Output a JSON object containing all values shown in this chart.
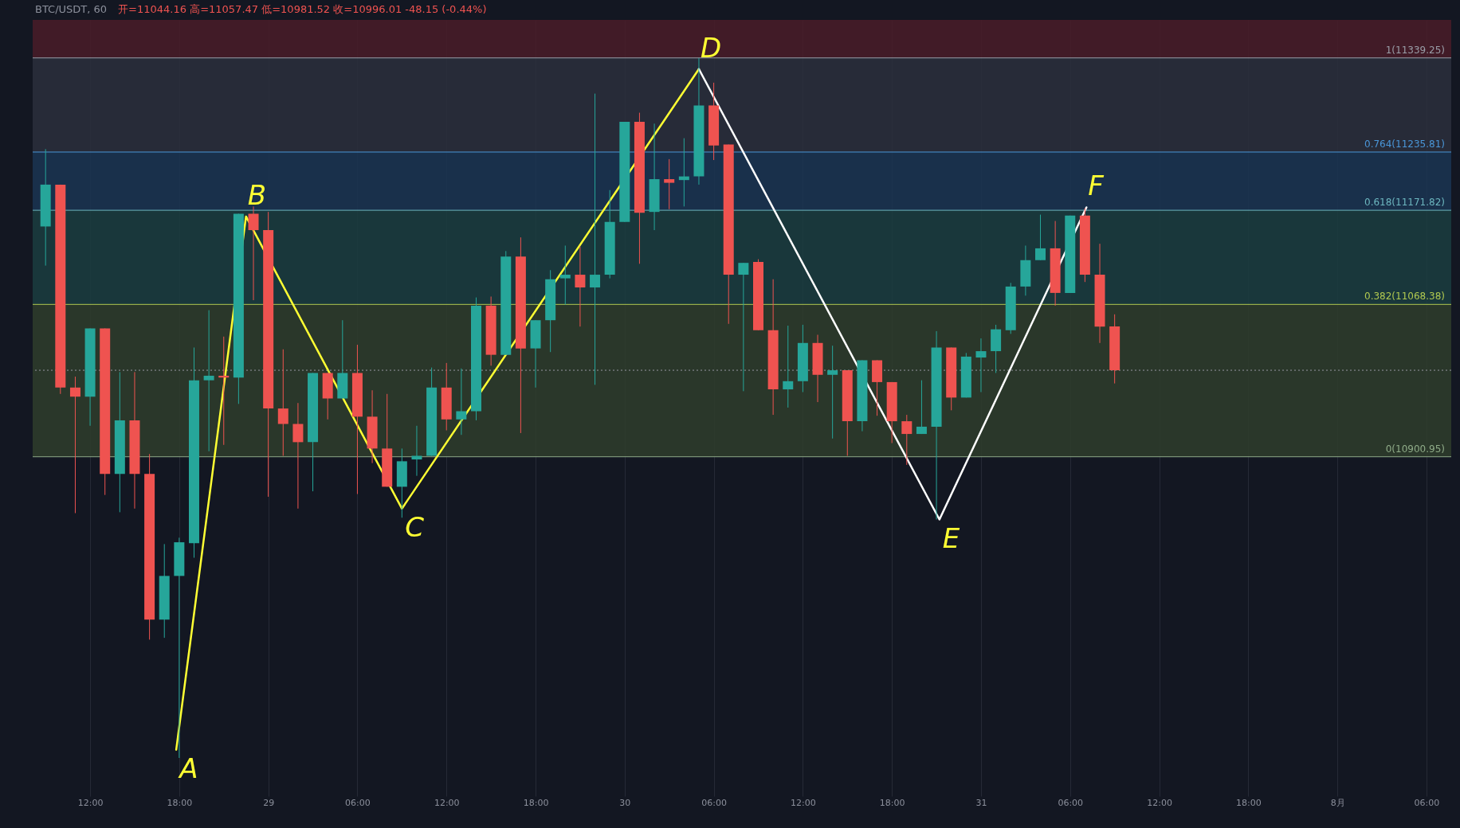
{
  "chart_data": {
    "type": "candlestick",
    "title": "BTC/USDT, 60",
    "subtitle": "开=11044.16 高=11057.47 低=10981.52 收=10996.01 -48.15 (-0.44%)",
    "xlim": [
      "--07-28T08:24",
      "--08-01T07:24"
    ],
    "xticks": [
      {
        "value": "--07-28T12:00",
        "label": "12:00"
      },
      {
        "value": "--07-28T18:00",
        "label": "18:00"
      },
      {
        "value": "--07-29T00:00",
        "label": "29"
      },
      {
        "value": "--07-29T06:00",
        "label": "06:00"
      },
      {
        "value": "--07-29T12:00",
        "label": "12:00"
      },
      {
        "value": "--07-29T18:00",
        "label": "18:00"
      },
      {
        "value": "--07-30T00:00",
        "label": "30"
      },
      {
        "value": "--07-30T06:00",
        "label": "06:00"
      },
      {
        "value": "--07-30T12:00",
        "label": "12:00"
      },
      {
        "value": "--07-30T18:00",
        "label": "18:00"
      },
      {
        "value": "--07-31T00:00",
        "label": "31"
      },
      {
        "value": "--07-31T06:00",
        "label": "06:00"
      },
      {
        "value": "--07-31T12:00",
        "label": "12:00"
      },
      {
        "value": "--07-31T18:00",
        "label": "18:00"
      },
      {
        "value": "--08-01T00:00",
        "label": "8月"
      },
      {
        "value": "--08-01T06:00",
        "label": "06:00"
      }
    ],
    "ylim": [
      10528,
      11381
    ],
    "tick_labels": "x",
    "grid": "x",
    "series": [
      {
        "color": "#26a69a",
        "x": [
          "--07-28T09:00",
          "--07-28T12:00",
          "--07-28T14:00",
          "--07-28T17:00",
          "--07-28T18:00",
          "--07-28T19:00",
          "--07-28T20:00",
          "--07-28T22:00",
          "--07-29T03:00",
          "--07-29T05:00",
          "--07-29T09:00",
          "--07-29T10:00",
          "--07-29T11:00",
          "--07-29T13:00",
          "--07-29T14:00",
          "--07-29T16:00",
          "--07-29T18:00",
          "--07-29T19:00",
          "--07-29T20:00",
          "--07-29T22:00",
          "--07-29T23:00",
          "--07-30T00:00",
          "--07-30T02:00",
          "--07-30T04:00",
          "--07-30T05:00",
          "--07-30T08:00",
          "--07-30T11:00",
          "--07-30T12:00",
          "--07-30T14:00",
          "--07-30T16:00",
          "--07-30T20:00",
          "--07-30T21:00",
          "--07-30T23:00",
          "--07-31T00:00",
          "--07-31T01:00",
          "--07-31T02:00",
          "--07-31T03:00",
          "--07-31T04:00",
          "--07-31T06:00"
        ],
        "ohlc": [
          [
            11154,
            11239,
            11111,
            11200
          ],
          [
            10967,
            11042,
            10935,
            11042
          ],
          [
            10882,
            10994,
            10840,
            10941
          ],
          [
            10722,
            10805,
            10702,
            10770
          ],
          [
            10770,
            10812,
            10570,
            10807
          ],
          [
            10806,
            11021,
            10790,
            10985
          ],
          [
            10985,
            11062,
            10907,
            10990
          ],
          [
            10988,
            11168,
            10959,
            11168
          ],
          [
            10917,
            10993,
            10863,
            10993
          ],
          [
            10965,
            11051,
            10965,
            10993
          ],
          [
            10868,
            10910,
            10834,
            10896
          ],
          [
            10898,
            10935,
            10880,
            10902
          ],
          [
            10902,
            10999,
            10902,
            10977
          ],
          [
            10942,
            10998,
            10925,
            10951
          ],
          [
            10951,
            11076,
            10941,
            11067
          ],
          [
            11013,
            11127,
            11013,
            11121
          ],
          [
            11020,
            11051,
            10977,
            11051
          ],
          [
            11051,
            11106,
            11016,
            11096
          ],
          [
            11097,
            11133,
            11068,
            11101
          ],
          [
            11087,
            11300,
            10980,
            11101
          ],
          [
            11101,
            11194,
            11097,
            11159
          ],
          [
            11159,
            11269,
            11159,
            11269
          ],
          [
            11170,
            11267,
            11150,
            11206
          ],
          [
            11205,
            11251,
            11176,
            11209
          ],
          [
            11209,
            11339,
            11200,
            11287
          ],
          [
            11101,
            11114,
            10973,
            11114
          ],
          [
            10975,
            11045,
            10955,
            10984
          ],
          [
            10984,
            11046,
            10972,
            11026
          ],
          [
            10991,
            11023,
            10921,
            10996
          ],
          [
            10940,
            11007,
            10929,
            11007
          ],
          [
            10926,
            10985,
            10926,
            10934
          ],
          [
            10934,
            11039,
            10832,
            11021
          ],
          [
            10966,
            11015,
            10966,
            11011
          ],
          [
            11010,
            11031,
            10972,
            11017
          ],
          [
            11017,
            11046,
            10993,
            11041
          ],
          [
            11040,
            11092,
            11036,
            11088
          ],
          [
            11088,
            11133,
            11078,
            11117
          ],
          [
            11117,
            11167,
            11117,
            11130
          ],
          [
            11081,
            11166,
            11081,
            11166
          ]
        ]
      },
      {
        "color": "#ef5350",
        "x": [
          "--07-28T10:00",
          "--07-28T11:00",
          "--07-28T13:00",
          "--07-28T15:00",
          "--07-28T16:00",
          "--07-28T21:00",
          "--07-28T23:00",
          "--07-29T00:00",
          "--07-29T01:00",
          "--07-29T02:00",
          "--07-29T04:00",
          "--07-29T06:00",
          "--07-29T07:00",
          "--07-29T08:00",
          "--07-29T12:00",
          "--07-29T15:00",
          "--07-29T17:00",
          "--07-29T21:00",
          "--07-30T01:00",
          "--07-30T03:00",
          "--07-30T06:00",
          "--07-30T07:00",
          "--07-30T09:00",
          "--07-30T10:00",
          "--07-30T13:00",
          "--07-30T15:00",
          "--07-30T17:00",
          "--07-30T18:00",
          "--07-30T19:00",
          "--07-30T22:00",
          "--07-31T05:00",
          "--07-31T07:00",
          "--07-31T08:00",
          "--07-31T09:00"
        ],
        "ohlc": [
          [
            11200,
            11200,
            10970,
            10977
          ],
          [
            10977,
            10989,
            10839,
            10967
          ],
          [
            11042,
            11042,
            10859,
            10882
          ],
          [
            10941,
            10994,
            10844,
            10882
          ],
          [
            10882,
            10904,
            10700,
            10722
          ],
          [
            10990,
            11033,
            10914,
            10988
          ],
          [
            11168,
            11176,
            11073,
            11150
          ],
          [
            11150,
            11170,
            10857,
            10954
          ],
          [
            10954,
            11019,
            10902,
            10937
          ],
          [
            10937,
            10960,
            10844,
            10917
          ],
          [
            10993,
            10993,
            10942,
            10965
          ],
          [
            10993,
            11024,
            10860,
            10945
          ],
          [
            10945,
            10974,
            10894,
            10910
          ],
          [
            10910,
            10970,
            10868,
            10868
          ],
          [
            10977,
            11004,
            10930,
            10942
          ],
          [
            11067,
            11077,
            11001,
            11013
          ],
          [
            11121,
            11142,
            10927,
            11020
          ],
          [
            11101,
            11132,
            11044,
            11087
          ],
          [
            11269,
            11279,
            11113,
            11169
          ],
          [
            11206,
            11228,
            11173,
            11202
          ],
          [
            11287,
            11312,
            11227,
            11243
          ],
          [
            11244,
            11244,
            11047,
            11101
          ],
          [
            11115,
            11118,
            11040,
            11040
          ],
          [
            11040,
            11096,
            10947,
            10975
          ],
          [
            11026,
            11035,
            10961,
            10991
          ],
          [
            10996,
            10996,
            10902,
            10940
          ],
          [
            11007,
            11007,
            10946,
            10983
          ],
          [
            10983,
            10983,
            10916,
            10940
          ],
          [
            10940,
            10947,
            10892,
            10926
          ],
          [
            11021,
            11021,
            10952,
            10966
          ],
          [
            11130,
            11160,
            11067,
            11081
          ],
          [
            11166,
            11174,
            11093,
            11101
          ],
          [
            11101,
            11135,
            11026,
            11044
          ],
          [
            11044.16,
            11057.47,
            10981.52,
            10996.01
          ]
        ]
      },
      {
        "type": "line",
        "color": "#ffff33",
        "x": [
          "--07-28T17:48",
          "--07-28T22:30",
          "--07-29T09:00",
          "--07-30T05:00"
        ],
        "values": [
          10579,
          11165,
          10844,
          11327
        ]
      },
      {
        "type": "line",
        "color": "#ffffff",
        "x": [
          "--07-30T05:00",
          "--07-30T21:12",
          "--07-31T07:06"
        ],
        "values": [
          11327,
          10832,
          11175
        ]
      }
    ],
    "bands": [
      {
        "axis": "y",
        "from": 11339.25,
        "to": 11381,
        "color": "#4a1c28"
      },
      {
        "axis": "y",
        "from": 11235.81,
        "to": 11339.25,
        "color": "#2c2f3c"
      },
      {
        "axis": "y",
        "from": 11171.82,
        "to": 11235.81,
        "color": "#1b3552"
      },
      {
        "axis": "y",
        "from": 11068.38,
        "to": 11171.82,
        "color": "#1b3d40"
      },
      {
        "axis": "y",
        "from": 10900.95,
        "to": 11068.38,
        "color": "#2f3d2b"
      }
    ],
    "ref_lines": [
      {
        "axis": "y",
        "value": 11339.25,
        "label": "1(11339.25)",
        "color": "#9a9ea8"
      },
      {
        "axis": "y",
        "value": 11235.81,
        "label": "0.764(11235.81)",
        "color": "#4a96d8"
      },
      {
        "axis": "y",
        "value": 11171.82,
        "label": "0.618(11171.82)",
        "color": "#6cb6bf"
      },
      {
        "axis": "y",
        "value": 11068.38,
        "label": "0.382(11068.38)",
        "color": "#b0c850"
      },
      {
        "axis": "y",
        "value": 10900.95,
        "label": "0(10900.95)",
        "color": "#8fab88"
      },
      {
        "axis": "y",
        "value": 10996.01,
        "color": "#9598a1",
        "line_style": "dotted"
      }
    ],
    "annotations": [
      {
        "text": "A",
        "x": "--07-28T17:48",
        "y": 10579
      },
      {
        "text": "B",
        "x": "--07-28T22:30",
        "y": 11165
      },
      {
        "text": "C",
        "x": "--07-29T09:00",
        "y": 10844
      },
      {
        "text": "D",
        "x": "--07-30T05:00",
        "y": 11327
      },
      {
        "text": "E",
        "x": "--07-30T21:12",
        "y": 10832
      },
      {
        "text": "F",
        "x": "--07-31T07:06",
        "y": 11175
      }
    ]
  }
}
